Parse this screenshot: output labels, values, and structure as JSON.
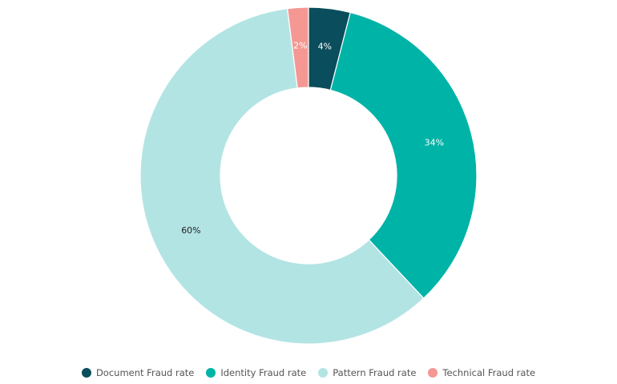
{
  "chart_data": {
    "type": "pie",
    "donut": true,
    "title": "",
    "categories": [
      "Document Fraud rate",
      "Identity Fraud rate",
      "Pattern Fraud rate",
      "Technical Fraud rate"
    ],
    "values": [
      4,
      34,
      60,
      2
    ],
    "labels": [
      "4%",
      "34%",
      "60%",
      "2%"
    ],
    "colors": [
      "#0a4d5c",
      "#00b3a7",
      "#b3e4e4",
      "#f59793"
    ],
    "label_colors": [
      "#ffffff",
      "#ffffff",
      "#222222",
      "#ffffff"
    ],
    "legend_position": "bottom"
  }
}
